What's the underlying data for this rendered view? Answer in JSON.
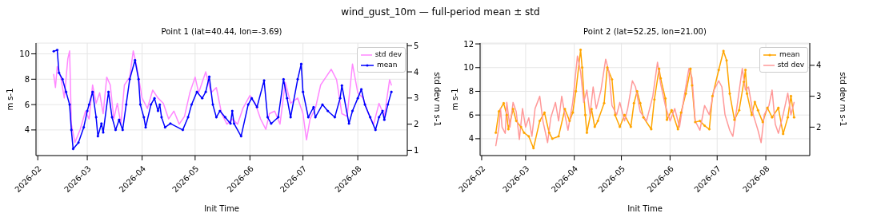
{
  "chart_data": [
    {
      "type": "line",
      "title": "Point 1 (lat=40.44, lon=-3.69)",
      "annotations": [
        "wind_gust_10m — full-period mean ± std"
      ],
      "xlabel": "Init Time",
      "ylabel": "m s-1",
      "y2label": "std dev m s-1",
      "grid": true,
      "legend": "top right",
      "xlim": [
        "2026-01-31",
        "2026-08-29"
      ],
      "xticks": [
        {
          "value": "2026-02-01",
          "label": "2026-02"
        },
        {
          "value": "2026-03-01",
          "label": "2026-03"
        },
        {
          "value": "2026-04-01",
          "label": "2026-04"
        },
        {
          "value": "2026-05-01",
          "label": "2026-05"
        },
        {
          "value": "2026-06-01",
          "label": "2026-06"
        },
        {
          "value": "2026-07-01",
          "label": "2026-07"
        },
        {
          "value": "2026-08-01",
          "label": "2026-08"
        }
      ],
      "ylim": [
        1.98,
        10.85
      ],
      "yticks": [
        4,
        6,
        8,
        10
      ],
      "y2lim": [
        0.8,
        5.1
      ],
      "y2ticks": [
        1,
        2,
        3,
        4,
        5
      ],
      "series": [
        {
          "name": "std dev",
          "color": "#ff88ff",
          "axis": "y2",
          "marker": "none",
          "x": [
            "2026-02-10",
            "2026-02-11",
            "2026-02-12",
            "2026-02-14",
            "2026-02-16",
            "2026-02-18",
            "2026-02-19",
            "2026-02-20",
            "2026-02-22",
            "2026-02-25",
            "2026-02-28",
            "2026-03-02",
            "2026-03-04",
            "2026-03-06",
            "2026-03-08",
            "2026-03-10",
            "2026-03-12",
            "2026-03-14",
            "2026-03-16",
            "2026-03-18",
            "2026-03-20",
            "2026-03-22",
            "2026-03-25",
            "2026-03-27",
            "2026-03-29",
            "2026-04-01",
            "2026-04-04",
            "2026-04-07",
            "2026-04-10",
            "2026-04-13",
            "2026-04-16",
            "2026-04-19",
            "2026-04-22",
            "2026-04-25",
            "2026-04-28",
            "2026-05-01",
            "2026-05-03",
            "2026-05-07",
            "2026-05-10",
            "2026-05-13",
            "2026-05-16",
            "2026-05-19",
            "2026-05-22",
            "2026-05-25",
            "2026-05-28",
            "2026-06-01",
            "2026-06-04",
            "2026-06-07",
            "2026-06-10",
            "2026-06-12",
            "2026-06-15",
            "2026-06-18",
            "2026-06-21",
            "2026-06-24",
            "2026-06-28",
            "2026-07-01",
            "2026-07-03",
            "2026-07-05",
            "2026-07-08",
            "2026-07-11",
            "2026-07-14",
            "2026-07-17",
            "2026-07-20",
            "2026-07-23",
            "2026-07-26",
            "2026-07-29",
            "2026-08-01",
            "2026-08-04",
            "2026-08-07",
            "2026-08-10",
            "2026-08-13",
            "2026-08-16",
            "2026-08-19",
            "2026-08-20"
          ],
          "values": [
            3.9,
            3.4,
            4.2,
            3.8,
            3.0,
            4.5,
            4.8,
            2.0,
            1.3,
            1.8,
            2.5,
            2.2,
            3.5,
            2.8,
            3.2,
            2.4,
            3.8,
            3.5,
            2.2,
            2.8,
            2.0,
            3.5,
            3.8,
            4.8,
            4.2,
            3.0,
            2.6,
            3.3,
            3.0,
            2.8,
            2.2,
            2.5,
            2.0,
            2.3,
            3.2,
            3.8,
            3.2,
            4.0,
            3.2,
            3.4,
            2.4,
            2.0,
            2.2,
            2.0,
            2.6,
            3.1,
            2.8,
            2.2,
            1.8,
            2.4,
            2.5,
            2.0,
            3.6,
            2.8,
            3.0,
            2.4,
            1.4,
            2.2,
            2.6,
            3.5,
            3.8,
            4.1,
            3.7,
            2.4,
            2.3,
            4.3,
            3.2,
            3.0,
            2.4,
            2.0,
            2.8,
            2.3,
            3.7,
            3.5
          ]
        },
        {
          "name": "mean",
          "color": "#0000ff",
          "axis": "y",
          "marker": "circle",
          "x": [
            "2026-02-10",
            "2026-02-12",
            "2026-02-13",
            "2026-02-15",
            "2026-02-17",
            "2026-02-19",
            "2026-02-20",
            "2026-02-21",
            "2026-02-24",
            "2026-02-27",
            "2026-03-01",
            "2026-03-02",
            "2026-03-04",
            "2026-03-06",
            "2026-03-07",
            "2026-03-09",
            "2026-03-10",
            "2026-03-13",
            "2026-03-15",
            "2026-03-17",
            "2026-03-19",
            "2026-03-21",
            "2026-03-23",
            "2026-03-25",
            "2026-03-28",
            "2026-03-30",
            "2026-03-31",
            "2026-04-02",
            "2026-04-03",
            "2026-04-06",
            "2026-04-08",
            "2026-04-10",
            "2026-04-11",
            "2026-04-12",
            "2026-04-14",
            "2026-04-17",
            "2026-04-24",
            "2026-04-27",
            "2026-04-29",
            "2026-05-02",
            "2026-05-05",
            "2026-05-07",
            "2026-05-09",
            "2026-05-11",
            "2026-05-13",
            "2026-05-15",
            "2026-05-18",
            "2026-05-21",
            "2026-05-22",
            "2026-05-23",
            "2026-05-27",
            "2026-05-31",
            "2026-06-02",
            "2026-06-05",
            "2026-06-09",
            "2026-06-11",
            "2026-06-13",
            "2026-06-17",
            "2026-06-20",
            "2026-06-22",
            "2026-06-24",
            "2026-06-28",
            "2026-06-30",
            "2026-07-01",
            "2026-07-04",
            "2026-07-07",
            "2026-07-08",
            "2026-07-12",
            "2026-07-15",
            "2026-07-19",
            "2026-07-22",
            "2026-07-23",
            "2026-07-27",
            "2026-07-29",
            "2026-08-01",
            "2026-08-03",
            "2026-08-05",
            "2026-08-08",
            "2026-08-11",
            "2026-08-13",
            "2026-08-15",
            "2026-08-16",
            "2026-08-18",
            "2026-08-20"
          ],
          "values": [
            10.2,
            10.3,
            8.5,
            8.0,
            7.0,
            6.0,
            4.0,
            2.5,
            3.0,
            4.2,
            5.5,
            6.0,
            7.0,
            5.0,
            3.5,
            4.5,
            3.8,
            7.0,
            5.0,
            4.0,
            4.8,
            4.0,
            6.0,
            8.0,
            9.5,
            8.0,
            6.0,
            5.0,
            4.2,
            6.0,
            6.5,
            5.5,
            6.0,
            5.0,
            4.2,
            4.5,
            4.0,
            5.0,
            6.0,
            7.0,
            6.5,
            7.0,
            8.2,
            6.0,
            5.0,
            5.5,
            5.0,
            4.5,
            5.5,
            4.5,
            3.5,
            6.0,
            6.5,
            5.8,
            7.9,
            5.0,
            4.5,
            5.0,
            8.0,
            6.5,
            5.0,
            8.0,
            9.2,
            7.0,
            5.0,
            5.8,
            5.0,
            6.0,
            5.5,
            5.0,
            6.5,
            7.5,
            4.5,
            5.5,
            6.5,
            7.2,
            6.0,
            5.0,
            4.0,
            5.0,
            5.5,
            4.8,
            6.0,
            7.0
          ]
        }
      ]
    },
    {
      "type": "line",
      "title": "Point 2 (lat=52.25, lon=21.00)",
      "xlabel": "Init Time",
      "ylabel": "m s-1",
      "y2label": "std dev m s-1",
      "grid": true,
      "legend": "top right",
      "xlim": [
        "2026-01-31",
        "2026-08-29"
      ],
      "xticks": [
        {
          "value": "2026-02-01",
          "label": "2026-02"
        },
        {
          "value": "2026-03-01",
          "label": "2026-03"
        },
        {
          "value": "2026-04-01",
          "label": "2026-04"
        },
        {
          "value": "2026-05-01",
          "label": "2026-05"
        },
        {
          "value": "2026-06-01",
          "label": "2026-06"
        },
        {
          "value": "2026-07-01",
          "label": "2026-07"
        },
        {
          "value": "2026-08-01",
          "label": "2026-08"
        }
      ],
      "ylim": [
        2.58,
        12.07
      ],
      "yticks": [
        4,
        6,
        8,
        10,
        12
      ],
      "y2lim": [
        1.08,
        4.72
      ],
      "y2ticks": [
        2,
        3,
        4
      ],
      "series": [
        {
          "name": "mean",
          "color": "#ffa500",
          "axis": "y",
          "marker": "circle",
          "x": [
            "2026-02-10",
            "2026-02-12",
            "2026-02-15",
            "2026-02-17",
            "2026-02-18",
            "2026-02-21",
            "2026-02-23",
            "2026-02-26",
            "2026-02-28",
            "2026-03-03",
            "2026-03-06",
            "2026-03-10",
            "2026-03-13",
            "2026-03-16",
            "2026-03-18",
            "2026-03-22",
            "2026-03-26",
            "2026-03-29",
            "2026-03-31",
            "2026-04-02",
            "2026-04-05",
            "2026-04-06",
            "2026-04-08",
            "2026-04-09",
            "2026-04-12",
            "2026-04-14",
            "2026-04-16",
            "2026-04-20",
            "2026-04-22",
            "2026-04-25",
            "2026-04-27",
            "2026-04-30",
            "2026-05-03",
            "2026-05-07",
            "2026-05-09",
            "2026-05-11",
            "2026-05-13",
            "2026-05-15",
            "2026-05-20",
            "2026-05-22",
            "2026-05-25",
            "2026-05-26",
            "2026-05-29",
            "2026-05-30",
            "2026-06-02",
            "2026-06-06",
            "2026-06-08",
            "2026-06-11",
            "2026-06-14",
            "2026-06-15",
            "2026-06-17",
            "2026-06-20",
            "2026-06-23",
            "2026-06-26",
            "2026-06-28",
            "2026-07-02",
            "2026-07-05",
            "2026-07-07",
            "2026-07-09",
            "2026-07-12",
            "2026-07-15",
            "2026-07-18",
            "2026-07-19",
            "2026-07-20",
            "2026-07-23",
            "2026-07-25",
            "2026-07-27",
            "2026-07-30",
            "2026-08-02",
            "2026-08-05",
            "2026-08-09",
            "2026-08-12",
            "2026-08-15",
            "2026-08-17",
            "2026-08-19"
          ],
          "values": [
            4.5,
            6.3,
            7.0,
            6.0,
            4.8,
            6.5,
            5.5,
            5.0,
            4.5,
            4.2,
            3.2,
            5.5,
            6.2,
            4.5,
            4.0,
            4.2,
            6.5,
            5.5,
            6.2,
            8.0,
            11.5,
            10.0,
            6.0,
            4.5,
            6.5,
            5.0,
            5.5,
            7.0,
            10.0,
            9.0,
            6.0,
            5.0,
            6.0,
            5.0,
            7.0,
            8.0,
            7.0,
            5.8,
            4.8,
            7.3,
            9.9,
            9.1,
            7.4,
            5.6,
            6.4,
            4.8,
            6.2,
            7.8,
            9.9,
            8.5,
            5.4,
            5.5,
            5.1,
            4.8,
            7.6,
            9.8,
            11.4,
            10.6,
            7.8,
            5.6,
            6.4,
            8.8,
            9.8,
            7.8,
            6.0,
            7.1,
            6.4,
            5.4,
            6.6,
            5.8,
            6.6,
            4.4,
            5.8,
            7.6,
            5.8
          ]
        },
        {
          "name": "std dev",
          "color": "#ff9999",
          "axis": "y2",
          "marker": "none",
          "x": [
            "2026-02-10",
            "2026-02-12",
            "2026-02-13",
            "2026-02-14",
            "2026-02-16",
            "2026-02-17",
            "2026-02-19",
            "2026-02-21",
            "2026-02-23",
            "2026-02-25",
            "2026-02-27",
            "2026-03-01",
            "2026-03-03",
            "2026-03-05",
            "2026-03-07",
            "2026-03-10",
            "2026-03-12",
            "2026-03-15",
            "2026-03-17",
            "2026-03-20",
            "2026-03-22",
            "2026-03-24",
            "2026-03-26",
            "2026-03-28",
            "2026-03-31",
            "2026-04-02",
            "2026-04-03",
            "2026-04-05",
            "2026-04-07",
            "2026-04-09",
            "2026-04-11",
            "2026-04-13",
            "2026-04-15",
            "2026-04-18",
            "2026-04-21",
            "2026-04-23",
            "2026-04-25",
            "2026-04-28",
            "2026-04-30",
            "2026-05-03",
            "2026-05-05",
            "2026-05-08",
            "2026-05-10",
            "2026-05-13",
            "2026-05-17",
            "2026-05-21",
            "2026-05-24",
            "2026-05-26",
            "2026-05-29",
            "2026-06-01",
            "2026-06-04",
            "2026-06-07",
            "2026-06-10",
            "2026-06-13",
            "2026-06-15",
            "2026-06-17",
            "2026-06-20",
            "2026-06-23",
            "2026-06-26",
            "2026-06-29",
            "2026-07-02",
            "2026-07-04",
            "2026-07-06",
            "2026-07-09",
            "2026-07-11",
            "2026-07-14",
            "2026-07-17",
            "2026-07-19",
            "2026-07-21",
            "2026-07-24",
            "2026-07-27",
            "2026-07-29",
            "2026-07-31",
            "2026-08-03",
            "2026-08-05",
            "2026-08-07",
            "2026-08-09",
            "2026-08-12",
            "2026-08-15",
            "2026-08-17",
            "2026-08-19"
          ],
          "values": [
            1.4,
            2.0,
            2.6,
            2.0,
            1.8,
            2.8,
            2.0,
            2.8,
            2.5,
            1.6,
            2.6,
            2.0,
            2.3,
            1.7,
            2.6,
            3.0,
            2.2,
            1.5,
            2.3,
            2.8,
            2.2,
            3.0,
            2.4,
            1.9,
            2.8,
            3.8,
            4.3,
            3.8,
            2.8,
            3.2,
            2.4,
            3.3,
            2.6,
            3.2,
            4.2,
            3.8,
            2.7,
            2.4,
            2.8,
            2.2,
            2.6,
            3.5,
            3.3,
            2.5,
            2.2,
            3.0,
            4.1,
            3.4,
            2.7,
            2.2,
            2.6,
            2.0,
            3.0,
            3.9,
            3.6,
            2.2,
            1.9,
            2.7,
            2.4,
            3.2,
            3.5,
            3.3,
            2.4,
            1.9,
            1.7,
            2.8,
            3.9,
            3.2,
            3.3,
            2.4,
            1.9,
            1.5,
            2.4,
            2.7,
            3.2,
            2.1,
            1.8,
            2.4,
            3.1,
            2.4,
            2.8
          ]
        }
      ]
    }
  ]
}
